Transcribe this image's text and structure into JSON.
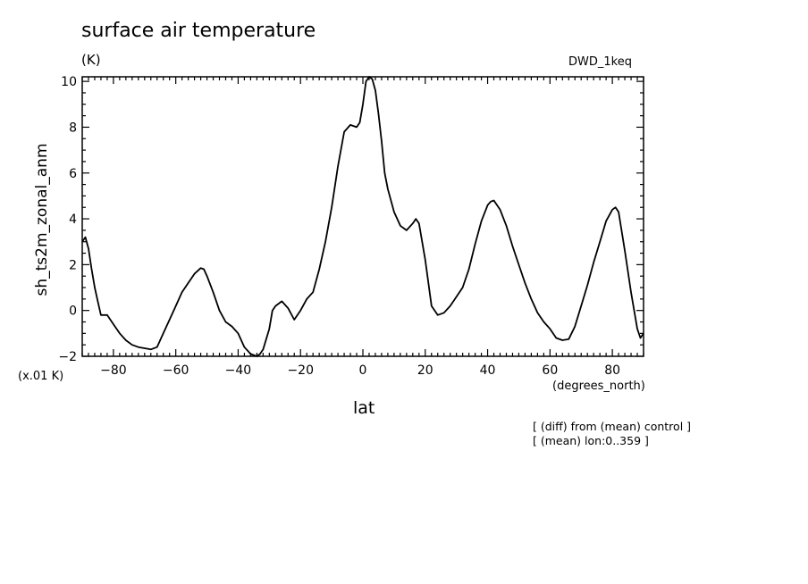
{
  "chart_data": {
    "type": "line",
    "title": "surface air temperature",
    "units": "(K)",
    "run_label": "DWD_1keq",
    "scale_note": "(x.01 K)",
    "xlabel": "lat",
    "xunits": "(degrees_north)",
    "ylabel": "sh_ts2m_zonal_anm",
    "notes": [
      "[ (diff) from (mean) control ]",
      "[ (mean) lon:0..359 ]"
    ],
    "xlim": [
      -90,
      90
    ],
    "ylim": [
      -2,
      10.2
    ],
    "xticks": [
      -80,
      -60,
      -40,
      -20,
      0,
      20,
      40,
      60,
      80
    ],
    "yticks": [
      -2,
      0,
      2,
      4,
      6,
      8,
      10
    ],
    "grid": false,
    "series": [
      {
        "x": [
          -90,
          -89,
          -88,
          -87,
          -86,
          -85,
          -84,
          -83,
          -82,
          -80,
          -78,
          -76,
          -74,
          -72,
          -70,
          -68,
          -66,
          -64,
          -62,
          -60,
          -58,
          -56,
          -54,
          -52,
          -51,
          -50,
          -48,
          -46,
          -44,
          -42,
          -40,
          -38,
          -36,
          -34,
          -33,
          -32,
          -30,
          -29,
          -28,
          -26,
          -24,
          -22,
          -20,
          -18,
          -16,
          -14,
          -12,
          -10,
          -8,
          -6,
          -4,
          -2,
          -1,
          0,
          1,
          2,
          3,
          4,
          5,
          6,
          7,
          8,
          10,
          12,
          14,
          16,
          17,
          18,
          20,
          22,
          24,
          26,
          28,
          30,
          32,
          34,
          36,
          38,
          40,
          41,
          42,
          44,
          46,
          48,
          50,
          52,
          54,
          56,
          58,
          60,
          62,
          64,
          66,
          68,
          70,
          72,
          74,
          76,
          78,
          80,
          81,
          82,
          84,
          86,
          88,
          89,
          90
        ],
        "y": [
          3.0,
          3.2,
          2.7,
          1.8,
          1.0,
          0.4,
          -0.2,
          -0.2,
          -0.2,
          -0.6,
          -1.0,
          -1.3,
          -1.5,
          -1.6,
          -1.65,
          -1.7,
          -1.6,
          -1.0,
          -0.4,
          0.2,
          0.8,
          1.2,
          1.6,
          1.85,
          1.8,
          1.5,
          0.8,
          0.0,
          -0.5,
          -0.7,
          -1.0,
          -1.6,
          -1.9,
          -2.0,
          -1.9,
          -1.7,
          -0.8,
          0.0,
          0.2,
          0.4,
          0.1,
          -0.4,
          0.0,
          0.5,
          0.8,
          1.8,
          3.0,
          4.5,
          6.3,
          7.8,
          8.1,
          8.0,
          8.2,
          9.0,
          10.0,
          10.2,
          10.1,
          9.6,
          8.6,
          7.4,
          6.0,
          5.3,
          4.3,
          3.7,
          3.5,
          3.8,
          4.0,
          3.8,
          2.2,
          0.2,
          -0.2,
          -0.1,
          0.2,
          0.6,
          1.0,
          1.8,
          2.9,
          3.9,
          4.6,
          4.75,
          4.8,
          4.4,
          3.7,
          2.8,
          2.0,
          1.2,
          0.5,
          -0.1,
          -0.5,
          -0.8,
          -1.2,
          -1.3,
          -1.25,
          -0.7,
          0.2,
          1.1,
          2.1,
          3.0,
          3.9,
          4.4,
          4.5,
          4.3,
          2.6,
          0.8,
          -0.8,
          -1.2,
          -1.0
        ]
      }
    ]
  }
}
